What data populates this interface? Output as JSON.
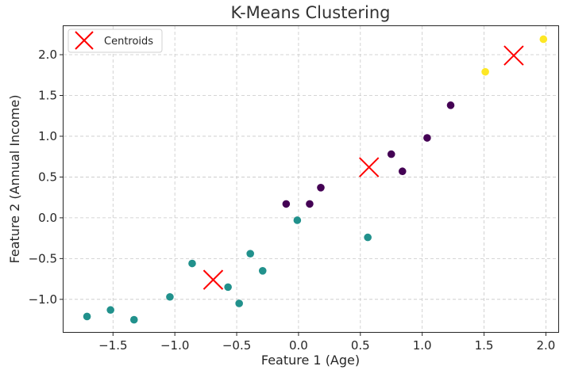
{
  "chart_data": {
    "type": "scatter",
    "title": "K-Means Clustering",
    "xlabel": "Feature 1 (Age)",
    "ylabel": "Feature 2 (Annual Income)",
    "xlim": [
      -1.9,
      2.1
    ],
    "ylim": [
      -1.4,
      2.35
    ],
    "xticks": [
      -1.5,
      -1.0,
      -0.5,
      0.0,
      0.5,
      1.0,
      1.5,
      2.0
    ],
    "yticks": [
      -1.0,
      -0.5,
      0.0,
      0.5,
      1.0,
      1.5,
      2.0
    ],
    "xtick_labels": [
      "−1.5",
      "−1.0",
      "−0.5",
      "0.0",
      "0.5",
      "1.0",
      "1.5",
      "2.0"
    ],
    "ytick_labels": [
      "−1.0",
      "−0.5",
      "0.0",
      "0.5",
      "1.0",
      "1.5",
      "2.0"
    ],
    "grid": true,
    "legend": {
      "position": "top-left",
      "entries": [
        "Centroids"
      ]
    },
    "clusters": [
      {
        "color": "#440154",
        "points": [
          [
            -0.1,
            0.17
          ],
          [
            0.09,
            0.17
          ],
          [
            0.18,
            0.37
          ],
          [
            0.75,
            0.78
          ],
          [
            0.84,
            0.57
          ],
          [
            1.04,
            0.98
          ],
          [
            1.23,
            1.38
          ]
        ]
      },
      {
        "color": "#21918c",
        "points": [
          [
            -1.71,
            -1.21
          ],
          [
            -1.52,
            -1.13
          ],
          [
            -1.33,
            -1.25
          ],
          [
            -1.04,
            -0.97
          ],
          [
            -0.86,
            -0.56
          ],
          [
            -0.57,
            -0.85
          ],
          [
            -0.48,
            -1.05
          ],
          [
            -0.39,
            -0.44
          ],
          [
            -0.29,
            -0.65
          ],
          [
            -0.01,
            -0.03
          ],
          [
            0.56,
            -0.24
          ]
        ]
      },
      {
        "color": "#fde725",
        "points": [
          [
            1.51,
            1.79
          ],
          [
            1.98,
            2.19
          ]
        ]
      }
    ],
    "centroids": {
      "name": "Centroids",
      "color": "#ff0000",
      "marker": "x",
      "points": [
        [
          -0.69,
          -0.76
        ],
        [
          0.57,
          0.62
        ],
        [
          1.74,
          1.99
        ]
      ]
    }
  }
}
